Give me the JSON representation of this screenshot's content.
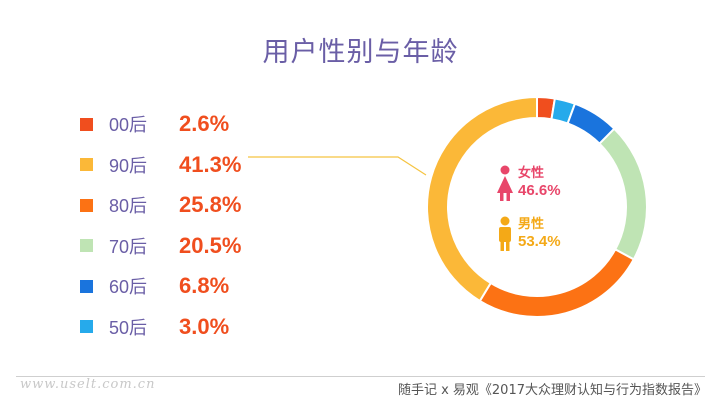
{
  "title": "用户性别与年龄",
  "legend": [
    {
      "label": "00后",
      "value_text": "2.6%",
      "color": "#f04e1e"
    },
    {
      "label": "90后",
      "value_text": "41.3%",
      "color": "#fbb838"
    },
    {
      "label": "80后",
      "value_text": "25.8%",
      "color": "#fc7214"
    },
    {
      "label": "70后",
      "value_text": "20.5%",
      "color": "#bfe4b4"
    },
    {
      "label": "60后",
      "value_text": "6.8%",
      "color": "#1a74dd"
    },
    {
      "label": "50后",
      "value_text": "3.0%",
      "color": "#26aaeb"
    }
  ],
  "gender": {
    "female": {
      "label": "女性",
      "value_text": "46.6%",
      "color": "#e8466a"
    },
    "male": {
      "label": "男性",
      "value_text": "53.4%",
      "color": "#f4a917"
    }
  },
  "footer": {
    "left": "www.uselt.com.cn",
    "right": "随手记 x 易观《2017大众理财认知与行为指数报告》"
  },
  "chart_data": {
    "type": "pie",
    "categories": [
      "00后",
      "50后",
      "60后",
      "70后",
      "80后",
      "90后"
    ],
    "values": [
      2.6,
      3.0,
      6.8,
      20.5,
      25.8,
      41.3
    ],
    "colors": [
      "#f04e1e",
      "#26aaeb",
      "#1a74dd",
      "#bfe4b4",
      "#fc7214",
      "#fbb838"
    ],
    "inner": [
      {
        "name": "女性",
        "value": 46.6
      },
      {
        "name": "男性",
        "value": 53.4
      }
    ]
  }
}
